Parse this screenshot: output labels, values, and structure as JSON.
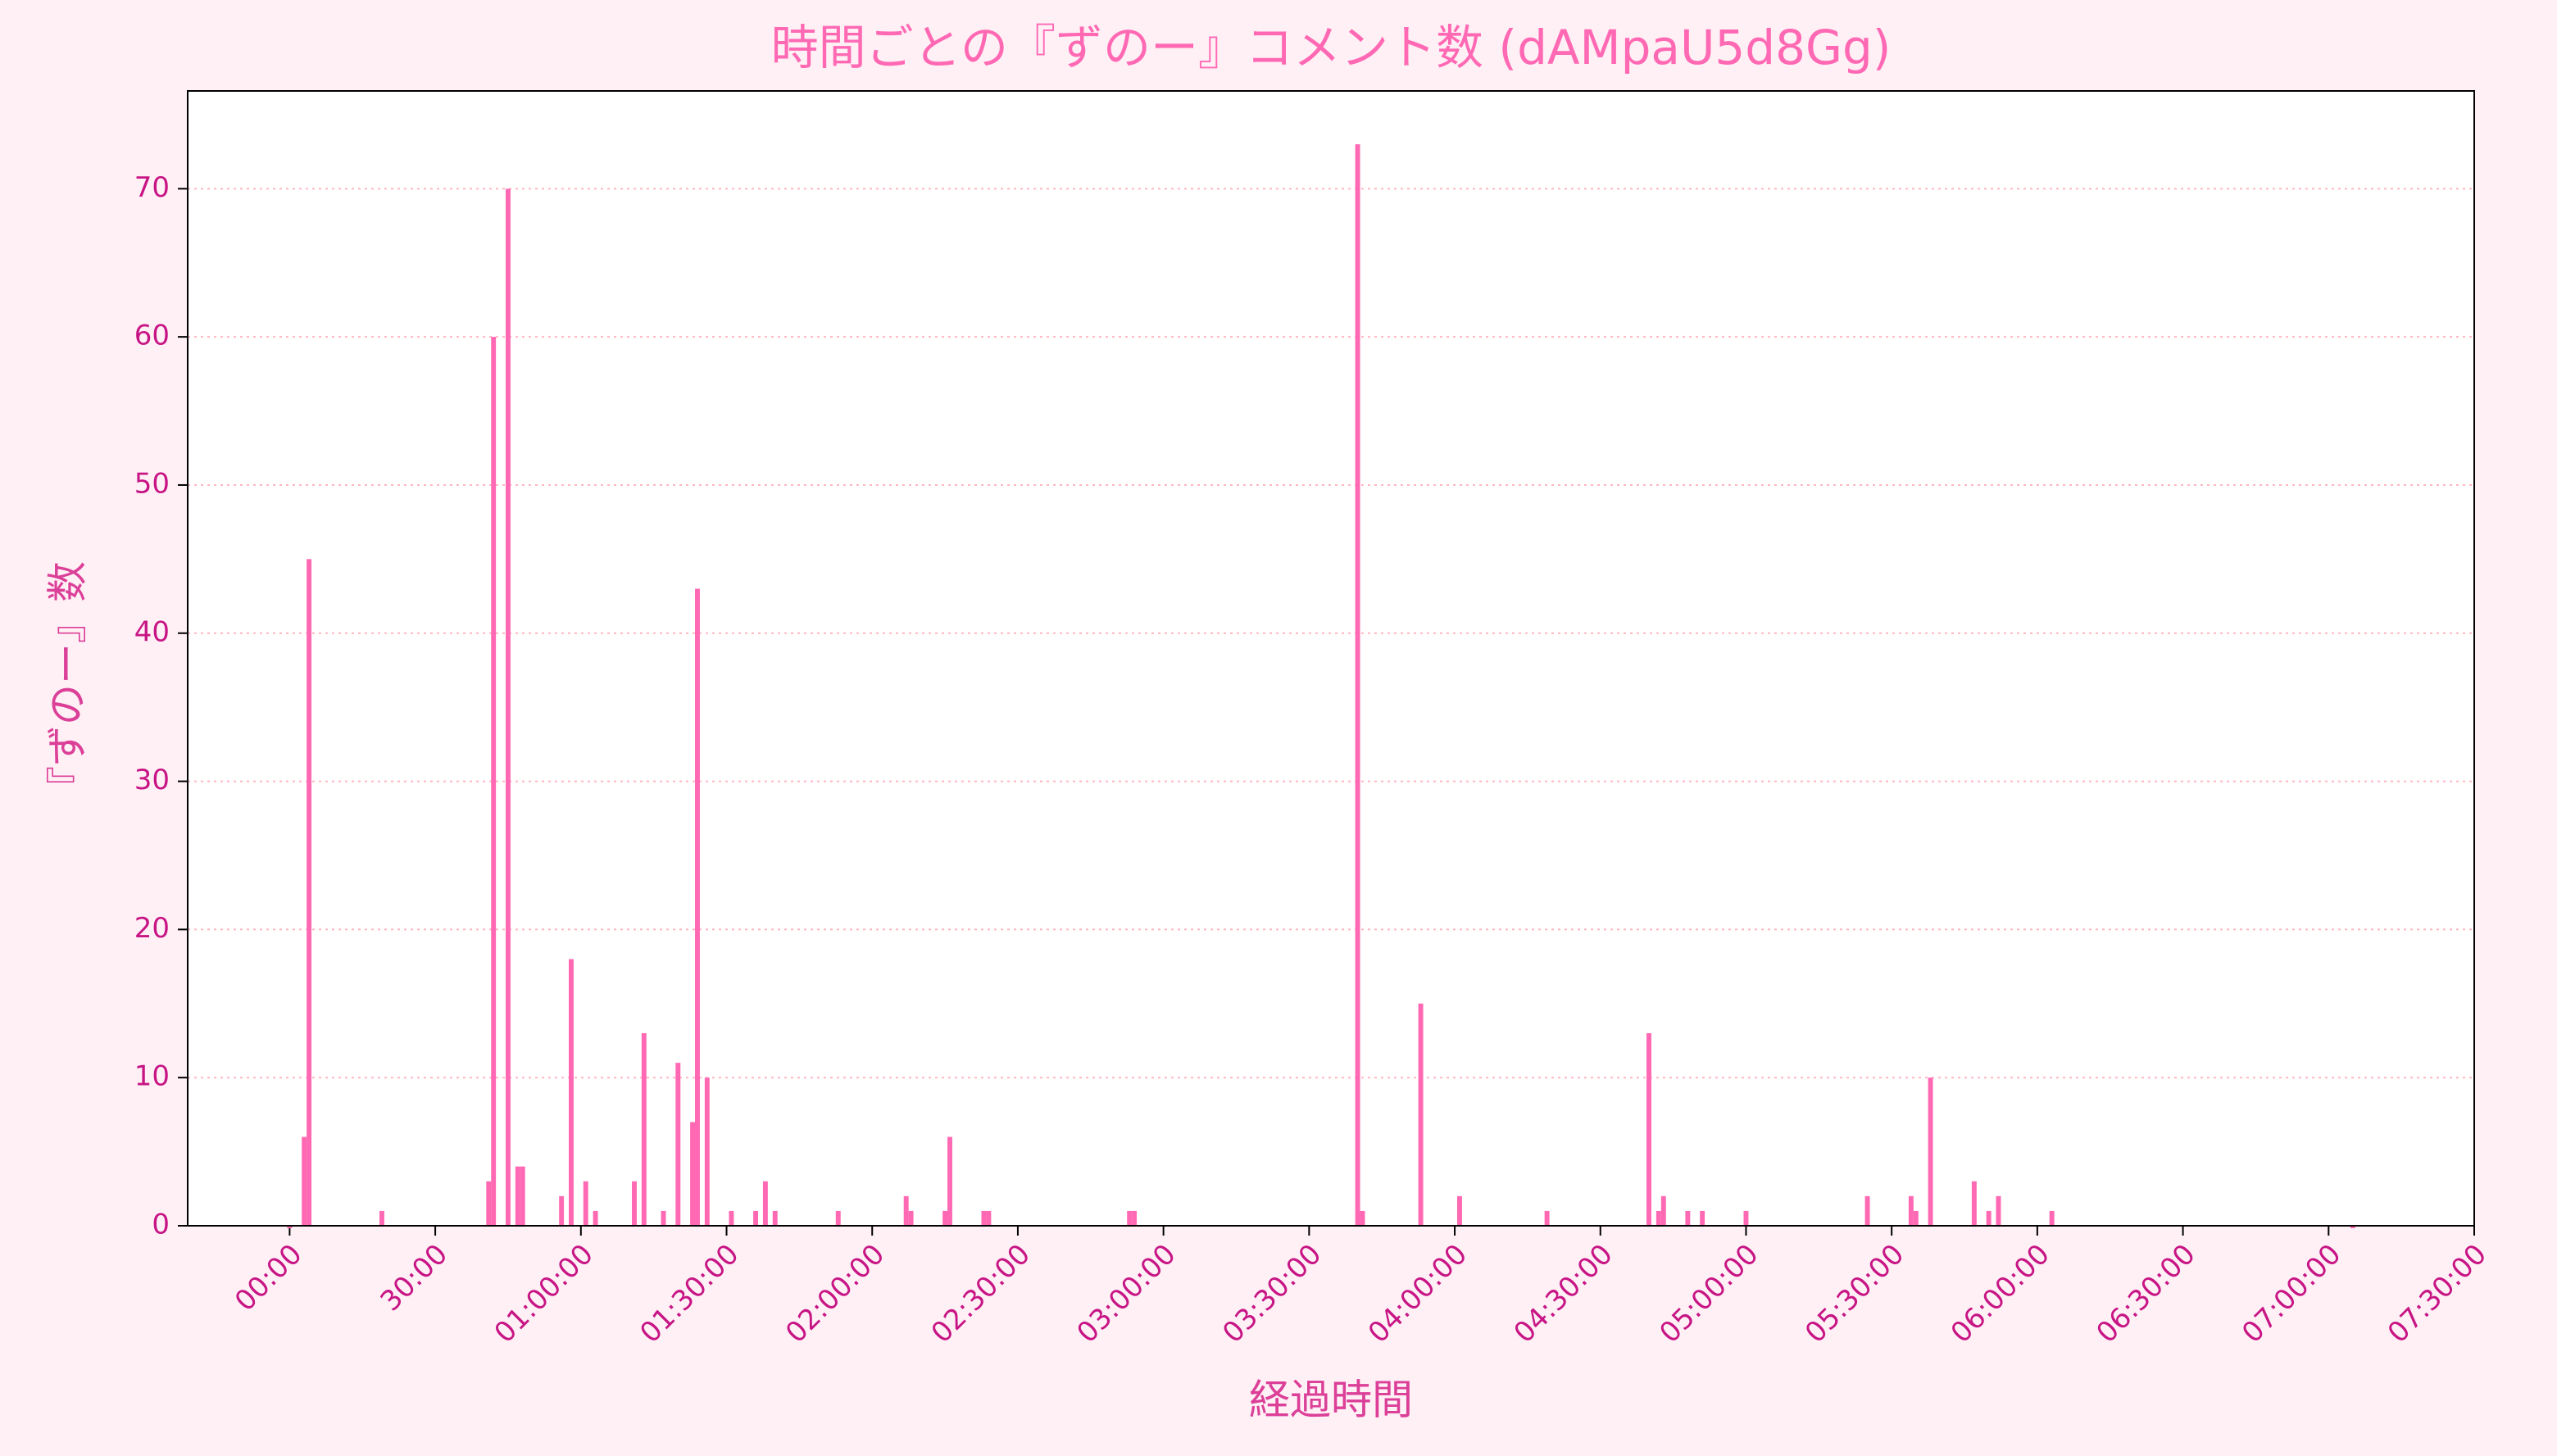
{
  "chart_data": {
    "type": "bar",
    "title": "時間ごとの『ずのー』コメント数 (dAMpaU5d8Gg)",
    "xlabel": "経過時間",
    "ylabel": "『ずのー』数",
    "color": "#ff69b4",
    "grid": true,
    "x": [
      0,
      3,
      4,
      19,
      41,
      42,
      45,
      47,
      48,
      56,
      58,
      61,
      63,
      71,
      73,
      77,
      80,
      83,
      84,
      86,
      91,
      96,
      98,
      100,
      113,
      127,
      128,
      135,
      136,
      143,
      144,
      173,
      174,
      220,
      221,
      233,
      241,
      259,
      280,
      282,
      283,
      288,
      291,
      300,
      325,
      334,
      335,
      338,
      347,
      350,
      352,
      363,
      425
    ],
    "values": [
      0,
      6,
      45,
      1,
      3,
      60,
      70,
      4,
      4,
      2,
      18,
      3,
      1,
      3,
      13,
      1,
      11,
      7,
      43,
      10,
      1,
      1,
      3,
      1,
      1,
      2,
      1,
      1,
      6,
      1,
      1,
      1,
      1,
      73,
      1,
      15,
      2,
      1,
      13,
      1,
      2,
      1,
      1,
      1,
      2,
      2,
      1,
      10,
      3,
      1,
      2,
      1,
      0
    ],
    "xlim": [
      -21,
      450
    ],
    "ylim": [
      0,
      76.6
    ],
    "xticks": [
      {
        "value": 0,
        "label": "00:00"
      },
      {
        "value": 30,
        "label": "30:00"
      },
      {
        "value": 60,
        "label": "01:00:00"
      },
      {
        "value": 90,
        "label": "01:30:00"
      },
      {
        "value": 120,
        "label": "02:00:00"
      },
      {
        "value": 150,
        "label": "02:30:00"
      },
      {
        "value": 180,
        "label": "03:00:00"
      },
      {
        "value": 210,
        "label": "03:30:00"
      },
      {
        "value": 240,
        "label": "04:00:00"
      },
      {
        "value": 270,
        "label": "04:30:00"
      },
      {
        "value": 300,
        "label": "05:00:00"
      },
      {
        "value": 330,
        "label": "05:30:00"
      },
      {
        "value": 360,
        "label": "06:00:00"
      },
      {
        "value": 390,
        "label": "06:30:00"
      },
      {
        "value": 420,
        "label": "07:00:00"
      },
      {
        "value": 450,
        "label": "07:30:00"
      }
    ],
    "yticks": [
      0,
      10,
      20,
      30,
      40,
      50,
      60,
      70
    ]
  }
}
